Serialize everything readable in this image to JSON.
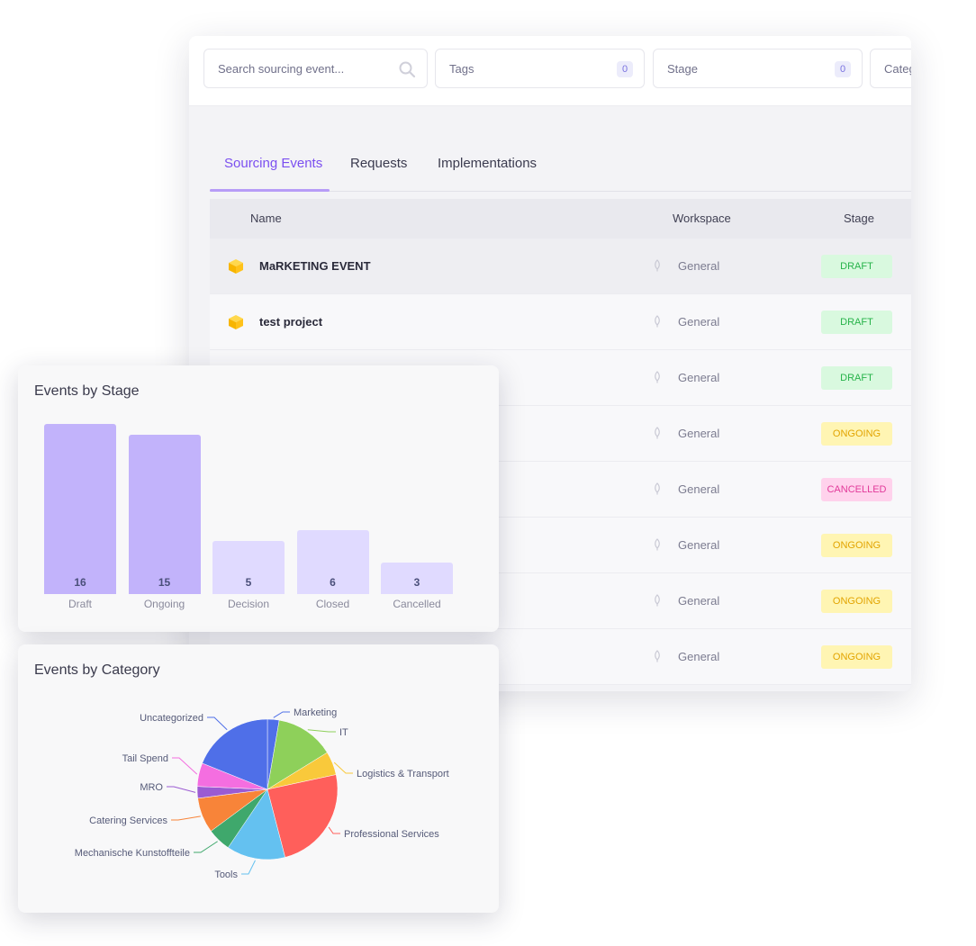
{
  "filters": {
    "search_placeholder": "Search sourcing event...",
    "tags_label": "Tags",
    "tags_count": "0",
    "stage_label": "Stage",
    "stage_count": "0",
    "category_label": "Categ"
  },
  "tabs": [
    {
      "label": "Sourcing Events"
    },
    {
      "label": "Requests"
    },
    {
      "label": "Implementations"
    }
  ],
  "table": {
    "headers": {
      "name": "Name",
      "workspace": "Workspace",
      "stage": "Stage"
    },
    "rows": [
      {
        "name": "MaRKETING EVENT",
        "workspace": "General",
        "stage": "DRAFT"
      },
      {
        "name": "test project",
        "workspace": "General",
        "stage": "DRAFT"
      },
      {
        "name": "",
        "workspace": "General",
        "stage": "DRAFT"
      },
      {
        "name": "",
        "workspace": "General",
        "stage": "ONGOING"
      },
      {
        "name": "",
        "workspace": "General",
        "stage": "CANCELLED"
      },
      {
        "name": "",
        "workspace": "General",
        "stage": "ONGOING"
      },
      {
        "name": "",
        "workspace": "General",
        "stage": "ONGOING"
      },
      {
        "name": "",
        "workspace": "General",
        "stage": "ONGOING"
      }
    ]
  },
  "colors": {
    "accent": "#7b4ff0",
    "draft_bg": "#d9f9df",
    "draft_fg": "#27b34a",
    "ongoing_bg": "#fff5b3",
    "ongoing_fg": "#e2a400",
    "cancelled_bg": "#ffd2ec",
    "cancelled_fg": "#e23a9a"
  },
  "icons": {
    "row": "cube-icon",
    "workspace": "leaf-icon",
    "search": "search-icon"
  },
  "chart_data": [
    {
      "type": "bar",
      "title": "Events by Stage",
      "categories": [
        "Draft",
        "Ongoing",
        "Decision",
        "Closed",
        "Cancelled"
      ],
      "values": [
        16,
        15,
        5,
        6,
        3
      ],
      "colors": [
        "#c2b3fb",
        "#c2b3fb",
        "#e0daff",
        "#e0daff",
        "#e0daff"
      ]
    },
    {
      "type": "pie",
      "title": "Events by Category",
      "slices": [
        {
          "label": "Marketing",
          "value": 1,
          "color": "#4f6fe8"
        },
        {
          "label": "IT",
          "value": 5,
          "color": "#8ed05a"
        },
        {
          "label": "Logistics & Transport",
          "value": 2,
          "color": "#f9c93b"
        },
        {
          "label": "Professional Services",
          "value": 9,
          "color": "#ff5f5b"
        },
        {
          "label": "Tools",
          "value": 5,
          "color": "#64c1f0"
        },
        {
          "label": "Mechanische Kunstoffteile",
          "value": 2,
          "color": "#3fa86c"
        },
        {
          "label": "Catering Services",
          "value": 3,
          "color": "#f88439"
        },
        {
          "label": "MRO",
          "value": 1,
          "color": "#9b5bd2"
        },
        {
          "label": "Tail Spend",
          "value": 2,
          "color": "#f46ee0"
        },
        {
          "label": "Uncategorized",
          "value": 7,
          "color": "#4f6fe8"
        }
      ]
    }
  ]
}
